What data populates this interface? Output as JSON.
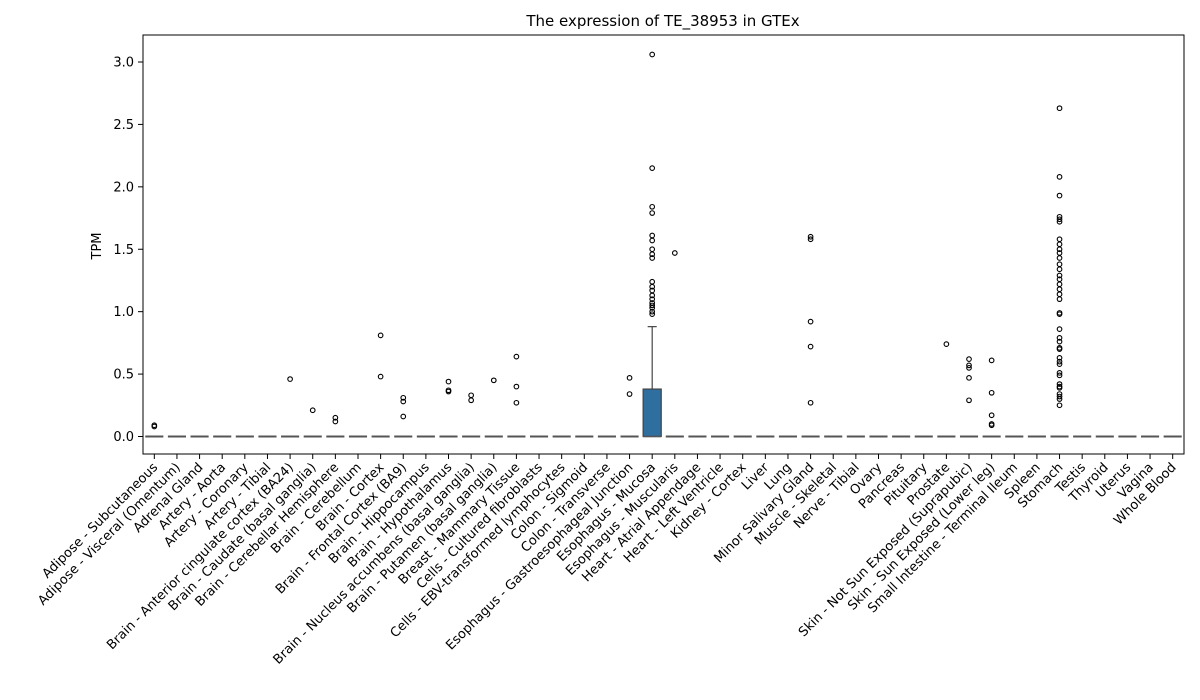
{
  "chart_data": {
    "type": "box",
    "title": "The expression of TE_38953 in GTEx",
    "xlabel": "",
    "ylabel": "TPM",
    "ylim": [
      -0.14,
      3.21
    ],
    "yticks": [
      "0.0",
      "0.5",
      "1.0",
      "1.5",
      "2.0",
      "2.5",
      "3.0"
    ],
    "box_color": "#2f6f9f",
    "median_color": "#555555",
    "categories": [
      "Adipose - Subcutaneous",
      "Adipose - Visceral (Omentum)",
      "Adrenal Gland",
      "Artery - Aorta",
      "Artery - Coronary",
      "Artery - Tibial",
      "Brain - Anterior cingulate cortex (BA24)",
      "Brain - Caudate (basal ganglia)",
      "Brain - Cerebellar Hemisphere",
      "Brain - Cerebellum",
      "Brain - Cortex",
      "Brain - Frontal Cortex (BA9)",
      "Brain - Hippocampus",
      "Brain - Hypothalamus",
      "Brain - Nucleus accumbens (basal ganglia)",
      "Brain - Putamen (basal ganglia)",
      "Breast - Mammary Tissue",
      "Cells - Cultured fibroblasts",
      "Cells - EBV-transformed lymphocytes",
      "Colon - Sigmoid",
      "Colon - Transverse",
      "Esophagus - Gastroesophageal Junction",
      "Esophagus - Mucosa",
      "Esophagus - Muscularis",
      "Heart - Atrial Appendage",
      "Heart - Left Ventricle",
      "Kidney - Cortex",
      "Liver",
      "Lung",
      "Minor Salivary Gland",
      "Muscle - Skeletal",
      "Nerve - Tibial",
      "Ovary",
      "Pancreas",
      "Pituitary",
      "Prostate",
      "Skin - Not Sun Exposed (Suprapubic)",
      "Skin - Sun Exposed (Lower leg)",
      "Small Intestine - Terminal Ileum",
      "Spleen",
      "Stomach",
      "Testis",
      "Thyroid",
      "Uterus",
      "Vagina",
      "Whole Blood"
    ],
    "boxes": [
      {
        "category": "Esophagus - Mucosa",
        "q1": 0.0,
        "median": 0.0,
        "q3": 0.38,
        "whisker_low": 0.0,
        "whisker_high": 0.88
      }
    ],
    "outliers": {
      "Adipose - Subcutaneous": [
        0.09,
        0.08
      ],
      "Brain - Anterior cingulate cortex (BA24)": [
        0.46
      ],
      "Brain - Caudate (basal ganglia)": [
        0.21
      ],
      "Brain - Cerebellar Hemisphere": [
        0.15,
        0.12
      ],
      "Brain - Cortex": [
        0.81,
        0.48
      ],
      "Brain - Frontal Cortex (BA9)": [
        0.31,
        0.28,
        0.16
      ],
      "Brain - Hypothalamus": [
        0.44,
        0.37,
        0.36
      ],
      "Brain - Nucleus accumbens (basal ganglia)": [
        0.33,
        0.29
      ],
      "Brain - Putamen (basal ganglia)": [
        0.45
      ],
      "Breast - Mammary Tissue": [
        0.64,
        0.4,
        0.27
      ],
      "Esophagus - Gastroesophageal Junction": [
        0.47,
        0.34
      ],
      "Esophagus - Mucosa": [
        3.06,
        2.15,
        1.84,
        1.79,
        1.61,
        1.57,
        1.5,
        1.46,
        1.43,
        1.24,
        1.2,
        1.17,
        1.13,
        1.1,
        1.07,
        1.05,
        1.03,
        1.0,
        0.98
      ],
      "Esophagus - Muscularis": [
        1.47
      ],
      "Minor Salivary Gland": [
        1.6,
        1.58,
        0.92,
        0.72,
        0.27
      ],
      "Prostate": [
        0.74
      ],
      "Skin - Not Sun Exposed (Suprapubic)": [
        0.62,
        0.57,
        0.55,
        0.47,
        0.29
      ],
      "Skin - Sun Exposed (Lower leg)": [
        0.61,
        0.35,
        0.17,
        0.1,
        0.09
      ],
      "Stomach": [
        2.63,
        2.08,
        1.93,
        1.76,
        1.74,
        1.72,
        1.58,
        1.54,
        1.5,
        1.47,
        1.43,
        1.38,
        1.34,
        1.29,
        1.26,
        1.22,
        1.18,
        1.14,
        1.1,
        0.99,
        0.98,
        0.86,
        0.79,
        0.76,
        0.71,
        0.7,
        0.63,
        0.6,
        0.58,
        0.51,
        0.49,
        0.42,
        0.4,
        0.39,
        0.34,
        0.32,
        0.3,
        0.25
      ]
    }
  }
}
